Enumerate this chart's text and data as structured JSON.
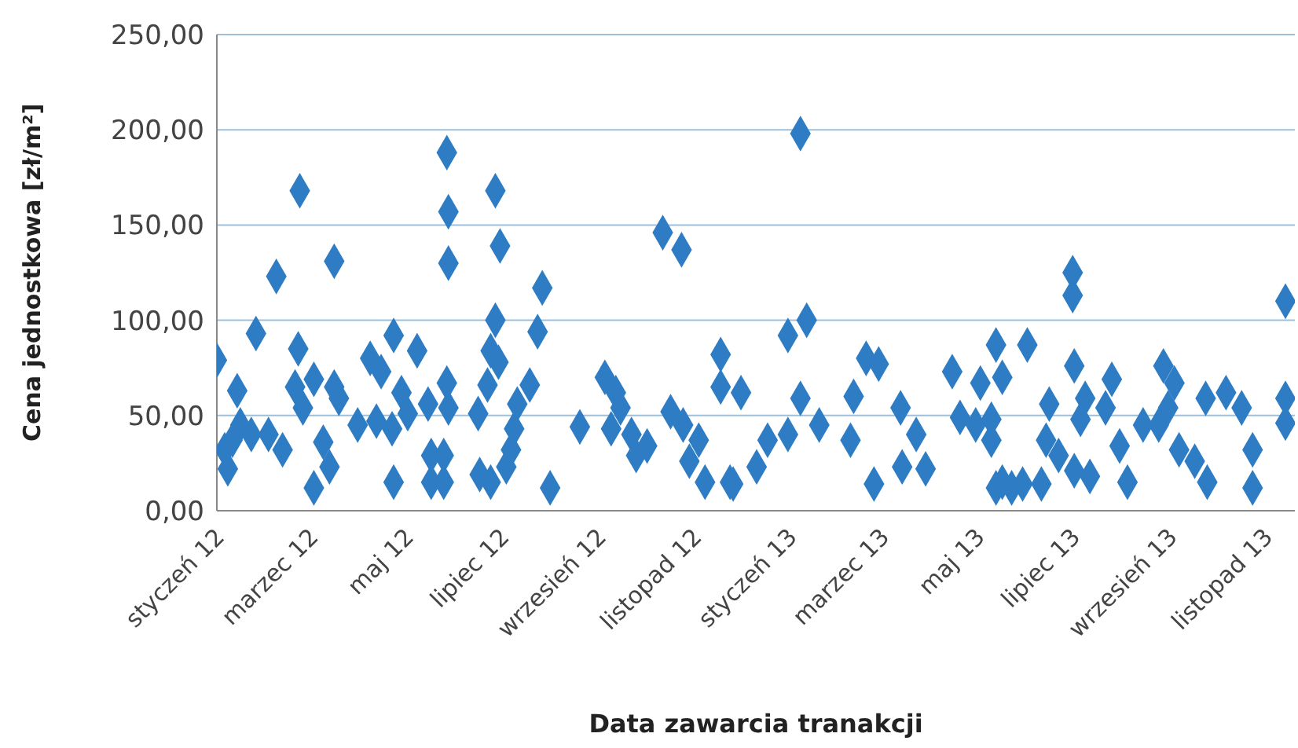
{
  "chart_data": {
    "type": "scatter",
    "xlabel": "Data zawarcia tranakcji",
    "ylabel": "Cena jednostkowa [zł/m²]",
    "marker": "diamond",
    "grid": "y",
    "legend": false,
    "ylim": [
      0,
      250
    ],
    "yticks": [
      {
        "value": 0,
        "label": "0,00"
      },
      {
        "value": 50,
        "label": "50,00"
      },
      {
        "value": 100,
        "label": "100,00"
      },
      {
        "value": 150,
        "label": "150,00"
      },
      {
        "value": 200,
        "label": "200,00"
      },
      {
        "value": 250,
        "label": "250,00"
      }
    ],
    "xlim": [
      "2012-01-01",
      "2013-11-20"
    ],
    "xticks": [
      {
        "value": "2012-01-01",
        "label": "styczeń 12"
      },
      {
        "value": "2012-03-01",
        "label": "marzec 12"
      },
      {
        "value": "2012-05-01",
        "label": "maj 12"
      },
      {
        "value": "2012-07-01",
        "label": "lipiec 12"
      },
      {
        "value": "2012-09-01",
        "label": "wrzesień 12"
      },
      {
        "value": "2012-11-01",
        "label": "listopad 12"
      },
      {
        "value": "2013-01-01",
        "label": "styczeń 13"
      },
      {
        "value": "2013-03-01",
        "label": "marzec 13"
      },
      {
        "value": "2013-05-01",
        "label": "maj 13"
      },
      {
        "value": "2013-07-01",
        "label": "lipiec 13"
      },
      {
        "value": "2013-09-01",
        "label": "wrzesień 13"
      },
      {
        "value": "2013-11-01",
        "label": "listopad 13"
      }
    ],
    "series": [
      {
        "color": "#2e7dc4",
        "x": [
          "2012-01-01",
          "2012-01-06",
          "2012-01-08",
          "2012-01-11",
          "2012-01-14",
          "2012-01-16",
          "2012-01-23",
          "2012-01-26",
          "2012-02-03",
          "2012-02-08",
          "2012-02-12",
          "2012-02-20",
          "2012-02-22",
          "2012-02-23",
          "2012-02-25",
          "2012-03-03",
          "2012-03-03",
          "2012-03-09",
          "2012-03-13",
          "2012-03-16",
          "2012-03-16",
          "2012-03-19",
          "2012-03-31",
          "2012-04-08",
          "2012-04-12",
          "2012-04-15",
          "2012-04-22",
          "2012-04-23",
          "2012-04-23",
          "2012-04-28",
          "2012-05-02",
          "2012-05-08",
          "2012-05-15",
          "2012-05-17",
          "2012-05-17",
          "2012-05-25",
          "2012-05-25",
          "2012-05-27",
          "2012-05-27",
          "2012-05-28",
          "2012-05-28",
          "2012-05-28",
          "2012-06-16",
          "2012-06-17",
          "2012-06-22",
          "2012-06-24",
          "2012-06-24",
          "2012-06-27",
          "2012-06-27",
          "2012-06-29",
          "2012-06-30",
          "2012-07-04",
          "2012-07-07",
          "2012-07-09",
          "2012-07-11",
          "2012-07-19",
          "2012-07-24",
          "2012-07-27",
          "2012-08-01",
          "2012-08-20",
          "2012-09-05",
          "2012-09-09",
          "2012-09-12",
          "2012-09-15",
          "2012-09-22",
          "2012-09-25",
          "2012-10-02",
          "2012-10-12",
          "2012-10-17",
          "2012-10-24",
          "2012-10-25",
          "2012-10-29",
          "2012-11-04",
          "2012-11-08",
          "2012-11-18",
          "2012-11-18",
          "2012-11-24",
          "2012-11-26",
          "2012-12-01",
          "2012-12-11",
          "2012-12-18",
          "2012-12-31",
          "2012-12-31",
          "2013-01-08",
          "2013-01-08",
          "2013-01-12",
          "2013-01-20",
          "2013-02-09",
          "2013-02-11",
          "2013-02-19",
          "2013-02-24",
          "2013-02-27",
          "2013-03-13",
          "2013-03-14",
          "2013-03-23",
          "2013-03-29",
          "2013-04-15",
          "2013-04-20",
          "2013-04-30",
          "2013-05-03",
          "2013-05-10",
          "2013-05-10",
          "2013-05-13",
          "2013-05-13",
          "2013-05-17",
          "2013-05-17",
          "2013-05-23",
          "2013-05-30",
          "2013-06-02",
          "2013-06-11",
          "2013-06-14",
          "2013-06-16",
          "2013-06-22",
          "2013-07-01",
          "2013-07-01",
          "2013-07-02",
          "2013-07-02",
          "2013-07-06",
          "2013-07-09",
          "2013-07-12",
          "2013-07-22",
          "2013-07-26",
          "2013-07-31",
          "2013-08-05",
          "2013-08-15",
          "2013-08-25",
          "2013-08-28",
          "2013-08-31",
          "2013-09-04",
          "2013-09-07",
          "2013-09-17",
          "2013-09-24",
          "2013-09-25",
          "2013-10-07",
          "2013-10-17",
          "2013-10-24",
          "2013-10-24",
          "2013-11-14",
          "2013-11-14",
          "2013-11-14"
        ],
        "values": [
          79,
          32,
          22,
          37,
          63,
          45,
          40,
          93,
          40,
          123,
          32,
          65,
          85,
          168,
          54,
          69,
          12,
          36,
          23,
          131,
          65,
          59,
          45,
          80,
          47,
          73,
          43,
          92,
          15,
          62,
          51,
          84,
          56,
          29,
          15,
          29,
          15,
          188,
          67,
          157,
          130,
          54,
          51,
          19,
          66,
          84,
          15,
          168,
          100,
          78,
          139,
          23,
          32,
          43,
          56,
          66,
          94,
          117,
          12,
          44,
          70,
          43,
          62,
          54,
          40,
          29,
          34,
          146,
          52,
          137,
          45,
          26,
          37,
          15,
          82,
          65,
          15,
          14,
          62,
          23,
          37,
          40,
          92,
          59,
          198,
          100,
          45,
          37,
          60,
          80,
          14,
          77,
          54,
          23,
          40,
          22,
          73,
          49,
          45,
          67,
          48,
          37,
          87,
          12,
          70,
          15,
          12,
          14,
          87,
          14,
          37,
          56,
          29,
          125,
          113,
          76,
          21,
          48,
          59,
          18,
          54,
          69,
          34,
          15,
          45,
          45,
          76,
          54,
          67,
          32,
          26,
          59,
          15,
          62,
          54,
          32,
          12,
          110,
          59,
          46
        ]
      }
    ]
  }
}
